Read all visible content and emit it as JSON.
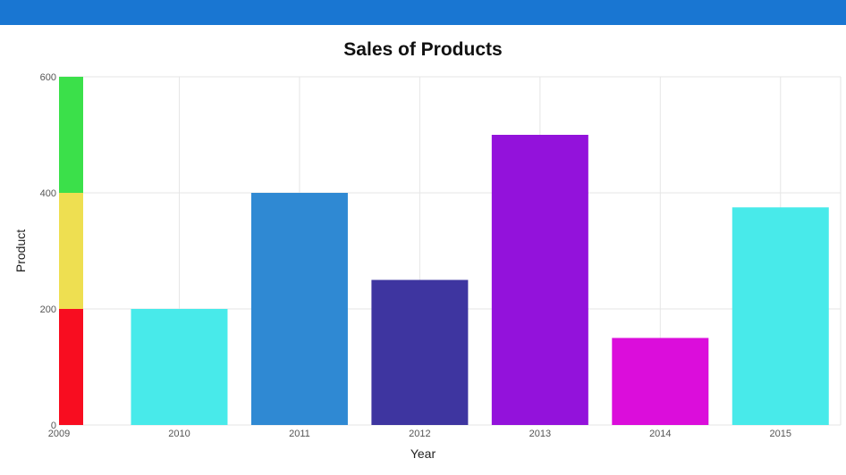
{
  "chart_data": {
    "type": "bar",
    "title": "Sales of Products",
    "xlabel": "Year",
    "ylabel": "Product",
    "ylim": [
      0,
      600
    ],
    "yticks": [
      "0",
      "200",
      "400",
      "600"
    ],
    "x_axis_start_label": "2009",
    "categories": [
      "2010",
      "2011",
      "2012",
      "2013",
      "2014",
      "2015"
    ],
    "values": [
      200,
      400,
      250,
      500,
      150,
      375
    ],
    "bar_colors": [
      "#48eaea",
      "#2f89d3",
      "#3e35a0",
      "#9312db",
      "#db0ddb",
      "#48eaea"
    ],
    "grid": true,
    "range_band": [
      {
        "from": 0,
        "to": 200,
        "color": "#f80d20"
      },
      {
        "from": 200,
        "to": 400,
        "color": "#eedf51"
      },
      {
        "from": 400,
        "to": 600,
        "color": "#3be04a"
      }
    ]
  },
  "colors": {
    "topbar": "#1976d2",
    "grid": "#e6e6e6"
  }
}
